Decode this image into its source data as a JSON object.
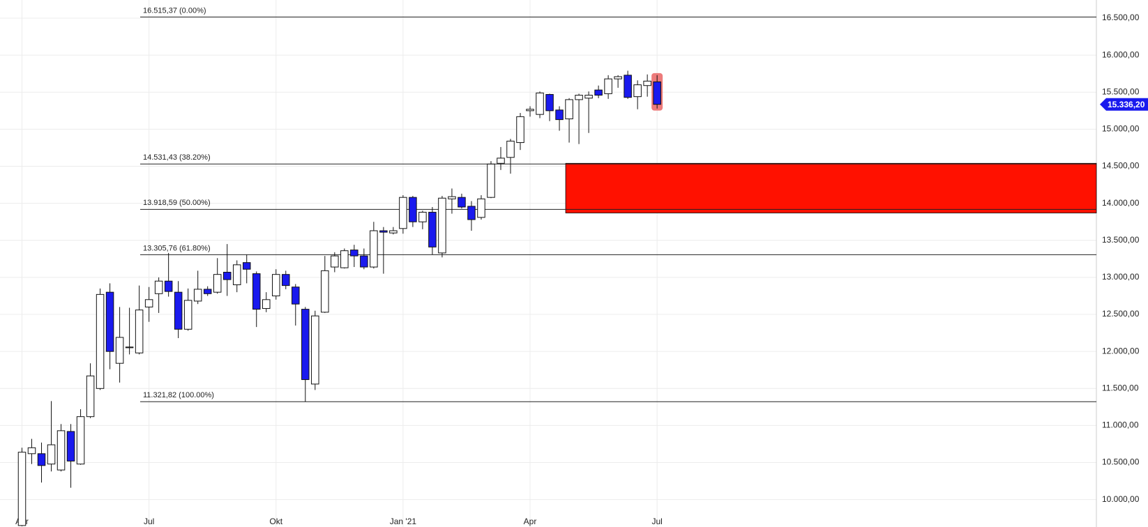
{
  "chart_data": {
    "type": "candlestick",
    "categories": [
      "Apr",
      null,
      null,
      null,
      null,
      null,
      null,
      null,
      null,
      null,
      null,
      null,
      null,
      "Jul",
      null,
      null,
      null,
      null,
      null,
      null,
      null,
      null,
      null,
      null,
      null,
      null,
      "Okt",
      null,
      null,
      null,
      null,
      null,
      null,
      null,
      null,
      null,
      null,
      null,
      null,
      "Jan '21",
      null,
      null,
      null,
      null,
      null,
      null,
      null,
      null,
      null,
      null,
      null,
      null,
      "Apr",
      null,
      null,
      null,
      null,
      null,
      null,
      null,
      null,
      null,
      null,
      null,
      null,
      "Jul"
    ],
    "open": [
      9650,
      10620,
      10620,
      10480,
      10400,
      10920,
      10480,
      11120,
      11500,
      12800,
      11840,
      12050,
      11980,
      12600,
      12780,
      12950,
      12800,
      12300,
      12680,
      12840,
      12800,
      13070,
      12900,
      13200,
      13050,
      12580,
      12750,
      13040,
      12870,
      12570,
      11560,
      12530,
      13140,
      13130,
      13370,
      13290,
      13140,
      13630,
      13600,
      13660,
      14080,
      13750,
      13880,
      13330,
      14060,
      14080,
      13960,
      13810,
      14080,
      14540,
      14620,
      14820,
      15250,
      15200,
      15470,
      15260,
      15140,
      15400,
      15420,
      15530,
      15480,
      15680,
      15730,
      15440,
      15590,
      15640
    ],
    "high": [
      10700,
      10820,
      10770,
      11330,
      11020,
      11020,
      11220,
      11840,
      12850,
      12920,
      12600,
      12590,
      12890,
      12870,
      13000,
      13330,
      12950,
      12850,
      13090,
      12880,
      13260,
      13450,
      13230,
      13310,
      13080,
      12800,
      13110,
      13090,
      12910,
      12600,
      12550,
      13290,
      13340,
      13390,
      13440,
      13390,
      13750,
      13680,
      13680,
      14110,
      14100,
      13900,
      13950,
      14100,
      14200,
      14130,
      14030,
      14110,
      14570,
      14760,
      14870,
      15220,
      15310,
      15510,
      15480,
      15310,
      15420,
      15480,
      15510,
      15590,
      15730,
      15730,
      15790,
      15660,
      15740,
      15730
    ],
    "low": [
      9640,
      10480,
      10230,
      10380,
      10380,
      10160,
      10470,
      11100,
      11480,
      11760,
      11580,
      11960,
      11960,
      12400,
      12520,
      12740,
      12180,
      12280,
      12640,
      12750,
      12780,
      12750,
      12800,
      12920,
      12330,
      12530,
      12700,
      12840,
      12350,
      11320,
      11480,
      12520,
      13070,
      13120,
      13140,
      13110,
      13120,
      13050,
      13580,
      13590,
      13680,
      13650,
      13310,
      13270,
      13860,
      13930,
      13630,
      13780,
      14070,
      14450,
      14400,
      14720,
      15170,
      15150,
      15110,
      14980,
      14820,
      14800,
      14950,
      15420,
      15410,
      15560,
      15410,
      15270,
      15440,
      15280
    ],
    "close": [
      10640,
      10700,
      10460,
      10740,
      10930,
      10520,
      11120,
      11670,
      12770,
      12000,
      12190,
      12060,
      12560,
      12700,
      12950,
      12810,
      12300,
      12690,
      12840,
      12780,
      13040,
      12970,
      13170,
      13110,
      12570,
      12700,
      13040,
      12890,
      12640,
      11620,
      12480,
      13090,
      13290,
      13360,
      13290,
      13140,
      13630,
      13610,
      13630,
      14080,
      13750,
      13880,
      13410,
      14070,
      14090,
      13950,
      13780,
      14060,
      14530,
      14610,
      14840,
      15170,
      15270,
      15490,
      15250,
      15130,
      15400,
      15460,
      15460,
      15460,
      15680,
      15710,
      15430,
      15600,
      15650,
      15336.2
    ],
    "up_color": "#ffffff",
    "down_color": "#1a1aee",
    "ylim": [
      9630,
      16745
    ],
    "yticks": [
      {
        "value": 10000,
        "label": "10.000,00"
      },
      {
        "value": 10500,
        "label": "10.500,00"
      },
      {
        "value": 11000,
        "label": "11.000,00"
      },
      {
        "value": 11500,
        "label": "11.500,00"
      },
      {
        "value": 12000,
        "label": "12.000,00"
      },
      {
        "value": 12500,
        "label": "12.500,00"
      },
      {
        "value": 13000,
        "label": "13.000,00"
      },
      {
        "value": 13500,
        "label": "13.500,00"
      },
      {
        "value": 14000,
        "label": "14.000,00"
      },
      {
        "value": 14500,
        "label": "14.500,00"
      },
      {
        "value": 15000,
        "label": "15.000,00"
      },
      {
        "value": 15500,
        "label": "15.500,00"
      },
      {
        "value": 16000,
        "label": "16.000,00"
      },
      {
        "value": 16500,
        "label": "16.500,00"
      }
    ],
    "grid": true,
    "fib_levels": [
      {
        "value": 16515.37,
        "label": "16.515,37 (0.00%)"
      },
      {
        "value": 14531.43,
        "label": "14.531,43 (38.20%)"
      },
      {
        "value": 13918.59,
        "label": "13.918,59 (50.00%)"
      },
      {
        "value": 13305.76,
        "label": "13.305,76 (61.80%)"
      },
      {
        "value": 11321.82,
        "label": "11.321,82 (100.00%)"
      }
    ],
    "zone": {
      "from": 13870,
      "to": 14540,
      "start_category": 56,
      "color": "#ff1100"
    },
    "last_price": {
      "value": 15336.2,
      "label": "15.336,20",
      "color": "#1a1aee"
    },
    "highlight_color": "#e85a5a"
  }
}
